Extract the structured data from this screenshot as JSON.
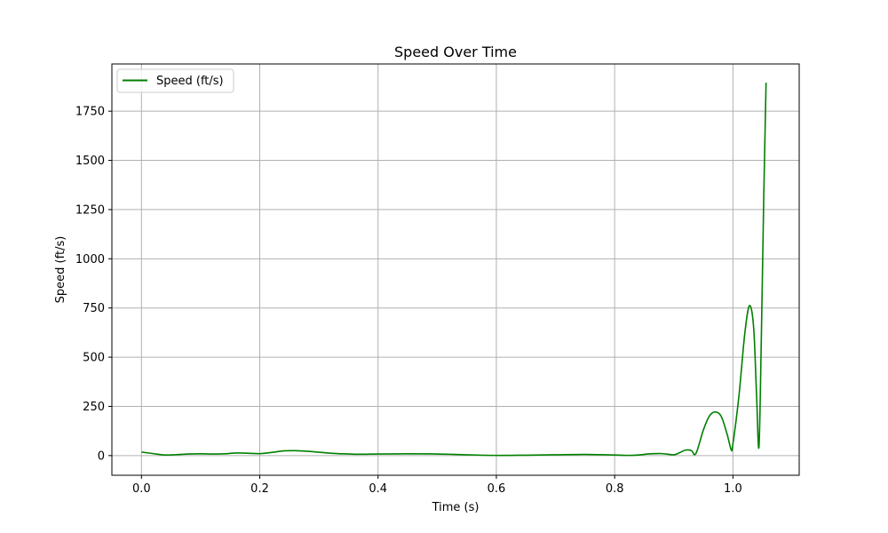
{
  "chart_data": {
    "type": "line",
    "title": "Speed Over Time",
    "xlabel": "Time (s)",
    "ylabel": "Speed (ft/s)",
    "xlim": [
      -0.05,
      1.112
    ],
    "ylim": [
      -100,
      1990
    ],
    "xticks": [
      0.0,
      0.2,
      0.4,
      0.6,
      0.8,
      1.0
    ],
    "xtick_labels": [
      "0.0",
      "0.2",
      "0.4",
      "0.6",
      "0.8",
      "1.0"
    ],
    "yticks": [
      0,
      250,
      500,
      750,
      1000,
      1250,
      1500,
      1750
    ],
    "ytick_labels": [
      "0",
      "250",
      "500",
      "750",
      "1000",
      "1250",
      "1500",
      "1750"
    ],
    "grid": true,
    "legend_position": "top-left",
    "series": [
      {
        "name": "Speed (ft/s)",
        "color": "#008000",
        "x": [
          0.0,
          0.02,
          0.04,
          0.06,
          0.08,
          0.1,
          0.12,
          0.14,
          0.16,
          0.18,
          0.2,
          0.22,
          0.24,
          0.26,
          0.28,
          0.3,
          0.32,
          0.34,
          0.36,
          0.38,
          0.4,
          0.45,
          0.5,
          0.55,
          0.6,
          0.65,
          0.7,
          0.75,
          0.8,
          0.82,
          0.84,
          0.86,
          0.88,
          0.9,
          0.91,
          0.92,
          0.93,
          0.935,
          0.94,
          0.95,
          0.96,
          0.97,
          0.98,
          0.99,
          0.997,
          1.0,
          1.01,
          1.02,
          1.028,
          1.035,
          1.04,
          1.044,
          1.048,
          1.052,
          1.056
        ],
        "y": [
          18,
          10,
          3,
          5,
          8,
          9,
          8,
          9,
          13,
          12,
          10,
          16,
          24,
          25,
          22,
          17,
          12,
          9,
          7,
          7,
          8,
          9,
          8,
          4,
          1,
          2,
          4,
          6,
          3,
          1,
          3,
          9,
          10,
          4,
          15,
          28,
          25,
          4,
          30,
          130,
          200,
          222,
          200,
          110,
          30,
          60,
          300,
          620,
          762,
          650,
          300,
          45,
          600,
          1300,
          1895
        ]
      }
    ]
  }
}
